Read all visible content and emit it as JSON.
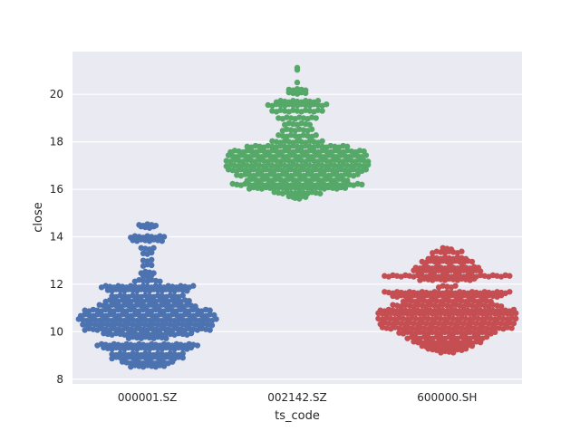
{
  "chart_data": {
    "type": "swarm",
    "title": "",
    "xlabel": "ts_code",
    "ylabel": "close",
    "categories": [
      "000001.SZ",
      "002142.SZ",
      "600000.SH"
    ],
    "ylim": [
      7.8,
      21.8
    ],
    "yticks": [
      8,
      10,
      12,
      14,
      16,
      18,
      20
    ],
    "grid": true,
    "colors": [
      "#4c72b0",
      "#55a868",
      "#c44e52"
    ],
    "series": [
      {
        "category": "000001.SZ",
        "bands": [
          {
            "y": 14.5,
            "n": 5
          },
          {
            "y": 14.4,
            "n": 4
          },
          {
            "y": 14.0,
            "n": 9
          },
          {
            "y": 13.85,
            "n": 8
          },
          {
            "y": 13.5,
            "n": 4
          },
          {
            "y": 13.3,
            "n": 3
          },
          {
            "y": 13.0,
            "n": 3
          },
          {
            "y": 12.8,
            "n": 3
          },
          {
            "y": 12.5,
            "n": 4
          },
          {
            "y": 12.35,
            "n": 3
          },
          {
            "y": 12.15,
            "n": 7
          },
          {
            "y": 11.9,
            "n": 23
          },
          {
            "y": 11.75,
            "n": 20
          },
          {
            "y": 11.5,
            "n": 18
          },
          {
            "y": 11.3,
            "n": 21
          },
          {
            "y": 11.1,
            "n": 24
          },
          {
            "y": 10.9,
            "n": 31
          },
          {
            "y": 10.7,
            "n": 33
          },
          {
            "y": 10.5,
            "n": 34
          },
          {
            "y": 10.3,
            "n": 32
          },
          {
            "y": 10.1,
            "n": 31
          },
          {
            "y": 9.9,
            "n": 22
          },
          {
            "y": 9.75,
            "n": 10
          },
          {
            "y": 9.45,
            "n": 25
          },
          {
            "y": 9.3,
            "n": 22
          },
          {
            "y": 9.05,
            "n": 18
          },
          {
            "y": 8.9,
            "n": 18
          },
          {
            "y": 8.7,
            "n": 13
          },
          {
            "y": 8.55,
            "n": 9
          }
        ]
      },
      {
        "category": "002142.SZ",
        "bands": [
          {
            "y": 21.15,
            "n": 1
          },
          {
            "y": 21.0,
            "n": 1
          },
          {
            "y": 20.5,
            "n": 1
          },
          {
            "y": 20.2,
            "n": 5
          },
          {
            "y": 20.05,
            "n": 5
          },
          {
            "y": 19.7,
            "n": 11
          },
          {
            "y": 19.55,
            "n": 15
          },
          {
            "y": 19.3,
            "n": 13
          },
          {
            "y": 19.0,
            "n": 10
          },
          {
            "y": 18.75,
            "n": 7
          },
          {
            "y": 18.5,
            "n": 8
          },
          {
            "y": 18.25,
            "n": 10
          },
          {
            "y": 18.0,
            "n": 13
          },
          {
            "y": 17.8,
            "n": 25
          },
          {
            "y": 17.6,
            "n": 33
          },
          {
            "y": 17.4,
            "n": 34
          },
          {
            "y": 17.2,
            "n": 35
          },
          {
            "y": 17.0,
            "n": 35
          },
          {
            "y": 16.8,
            "n": 34
          },
          {
            "y": 16.6,
            "n": 30
          },
          {
            "y": 16.4,
            "n": 25
          },
          {
            "y": 16.2,
            "n": 32
          },
          {
            "y": 16.05,
            "n": 24
          },
          {
            "y": 15.85,
            "n": 12
          },
          {
            "y": 15.7,
            "n": 5
          },
          {
            "y": 15.6,
            "n": 2
          }
        ]
      },
      {
        "category": "600000.SH",
        "bands": [
          {
            "y": 13.5,
            "n": 3
          },
          {
            "y": 13.35,
            "n": 8
          },
          {
            "y": 13.1,
            "n": 10
          },
          {
            "y": 12.95,
            "n": 13
          },
          {
            "y": 12.7,
            "n": 16
          },
          {
            "y": 12.55,
            "n": 17
          },
          {
            "y": 12.35,
            "n": 31
          },
          {
            "y": 12.2,
            "n": 14
          },
          {
            "y": 11.9,
            "n": 5
          },
          {
            "y": 11.65,
            "n": 31
          },
          {
            "y": 11.5,
            "n": 27
          },
          {
            "y": 11.3,
            "n": 22
          },
          {
            "y": 11.1,
            "n": 27
          },
          {
            "y": 10.9,
            "n": 33
          },
          {
            "y": 10.75,
            "n": 34
          },
          {
            "y": 10.55,
            "n": 34
          },
          {
            "y": 10.35,
            "n": 33
          },
          {
            "y": 10.15,
            "n": 32
          },
          {
            "y": 9.95,
            "n": 24
          },
          {
            "y": 9.75,
            "n": 20
          },
          {
            "y": 9.55,
            "n": 17
          },
          {
            "y": 9.4,
            "n": 13
          },
          {
            "y": 9.25,
            "n": 10
          },
          {
            "y": 9.15,
            "n": 4
          }
        ]
      }
    ]
  }
}
